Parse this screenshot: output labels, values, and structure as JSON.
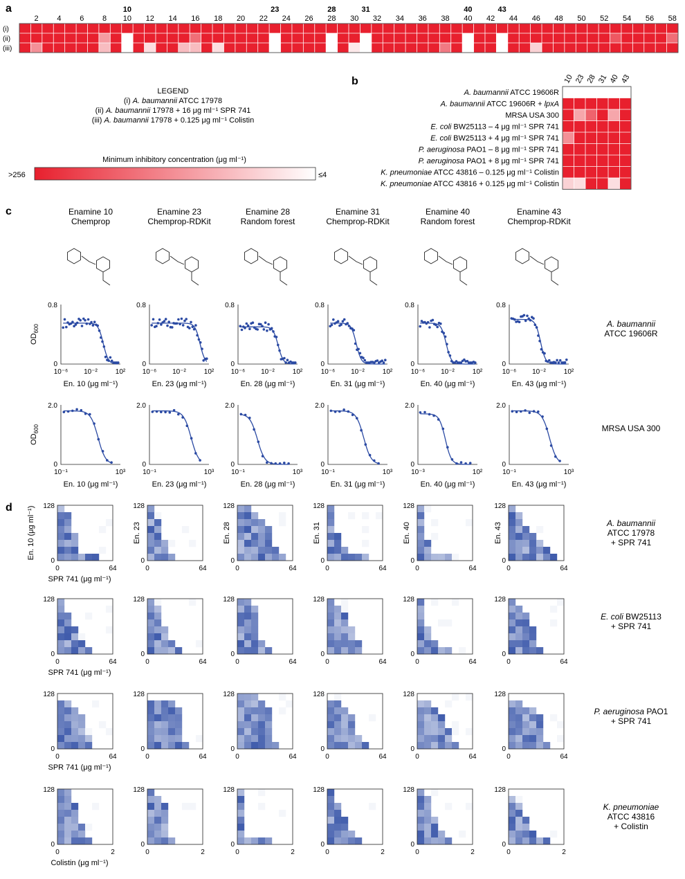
{
  "colors": {
    "red": "#e8202e",
    "blue": "#2b4aa3",
    "lightblue": "#c5cfe8",
    "white": "#ffffff"
  },
  "panel_letters": [
    "a",
    "b",
    "c",
    "d"
  ],
  "panel_a": {
    "row_labels": [
      "(i)",
      "(ii)",
      "(iii)"
    ],
    "column_numbers": [
      "2",
      "4",
      "6",
      "8",
      "10",
      "12",
      "14",
      "16",
      "18",
      "20",
      "22",
      "24",
      "26",
      "28",
      "30",
      "32",
      "34",
      "36",
      "38",
      "40",
      "42",
      "44",
      "46",
      "48",
      "50",
      "52",
      "54",
      "56",
      "58"
    ],
    "highlighted_labels": [
      "10",
      "23",
      "28",
      "31",
      "40",
      "43"
    ],
    "legend": {
      "title": "LEGEND",
      "line1_prefix": "(i) ",
      "line1_italic": "A. baumannii",
      "line1_rest": " ATCC 17978",
      "line2_prefix": "(ii) ",
      "line2_italic": "A. baumannii",
      "line2_rest": " 17978 + 16 μg ml⁻¹ SPR 741",
      "line3_prefix": "(iii) ",
      "line3_italic": "A. baumannii",
      "line3_rest": " 17978 + 0.125 μg ml⁻¹ Colistin"
    },
    "colorbar": {
      "title": "Minimum inhibitory concentration (μg ml⁻¹)",
      "left": ">256",
      "right": "≤4"
    }
  },
  "panel_b": {
    "columns": [
      "10",
      "23",
      "28",
      "31",
      "40",
      "43"
    ],
    "rows": [
      {
        "italic": "A. baumannii",
        "rest": " ATCC 19606R"
      },
      {
        "italic": "A. baumannii",
        "rest": " ATCC 19606R + ",
        "italic2": "lpxA"
      },
      {
        "italic": "",
        "rest": "MRSA USA 300"
      },
      {
        "italic": "E. coli",
        "rest": " BW25113 – 4 μg ml⁻¹ SPR 741"
      },
      {
        "italic": "E. coli",
        "rest": " BW25113 + 4 μg ml⁻¹ SPR 741"
      },
      {
        "italic": "P. aeruginosa",
        "rest": " PAO1 – 8 μg ml⁻¹ SPR 741"
      },
      {
        "italic": "P. aeruginosa",
        "rest": " PAO1 + 8 μg ml⁻¹ SPR 741"
      },
      {
        "italic": "K. pneumoniae",
        "rest": " ATCC 43816 – 0.125 μg ml⁻¹ Colistin"
      },
      {
        "italic": "K. pneumoniae",
        "rest": " ATCC 43816 + 0.125 μg ml⁻¹ Colistin"
      }
    ]
  },
  "panel_c": {
    "compounds": [
      {
        "title": "Enamine 10",
        "model": "Chemprop",
        "xlabel": "En. 10 (μg ml⁻¹)"
      },
      {
        "title": "Enamine 23",
        "model": "Chemprop-RDKit",
        "xlabel": "En. 23 (μg ml⁻¹)"
      },
      {
        "title": "Enamine 28",
        "model": "Random forest",
        "xlabel": "En. 28 (μg ml⁻¹)"
      },
      {
        "title": "Enamine 31",
        "model": "Chemprop-RDKit",
        "xlabel": "En. 31 (μg ml⁻¹)"
      },
      {
        "title": "Enamine 40",
        "model": "Random forest",
        "xlabel": "En. 40 (μg ml⁻¹)"
      },
      {
        "title": "Enamine 43",
        "model": "Chemprop-RDKit",
        "xlabel": "En. 43 (μg ml⁻¹)"
      }
    ],
    "ylabel": "OD600",
    "row1_label": {
      "italic": "A. baumannii",
      "rest": "ATCC 19606R"
    },
    "row2_label": "MRSA USA 300"
  },
  "panel_d": {
    "ylabels": [
      "En. 10 (μg ml⁻¹)",
      "En. 23",
      "En. 28",
      "En. 31",
      "En. 40",
      "En. 43"
    ],
    "rows": [
      {
        "xlabel": "SPR 741 (μg ml⁻¹)",
        "xmax": "64",
        "italic": "A. baumannii",
        "line2": "ATCC 17978",
        "line3": "+ SPR 741"
      },
      {
        "xlabel": "SPR 741 (μg ml⁻¹)",
        "xmax": "64",
        "italic": "E. coli",
        "rest": " BW25113",
        "line2": "+ SPR 741"
      },
      {
        "xlabel": "SPR 741 (μg ml⁻¹)",
        "xmax": "64",
        "italic": "P. aeruginosa",
        "rest": " PAO1",
        "line2": "+ SPR 741"
      },
      {
        "xlabel": "Colistin (μg ml⁻¹)",
        "xmax": "2",
        "italic": "K. pneumoniae",
        "line2": "ATCC 43816",
        "line3": "+ Colistin"
      }
    ],
    "ymin": "0",
    "ymax": "128",
    "xmin": "0"
  },
  "chart_data": [
    {
      "type": "heatmap",
      "panel": "a",
      "rows": [
        "(i)",
        "(ii)",
        "(iii)"
      ],
      "columns": 58,
      "value_scale": "MIC intensity 0 (≤4, white) to 1 (>256, red)",
      "values": [
        [
          1,
          1,
          1,
          1,
          1,
          1,
          1,
          1,
          1,
          1,
          1,
          1,
          1,
          1,
          1,
          1,
          1,
          1,
          1,
          1,
          1,
          1,
          1,
          1,
          1,
          1,
          1,
          1,
          1,
          1,
          1,
          1,
          1,
          1,
          1,
          1,
          1,
          1,
          1,
          1,
          1,
          1,
          1,
          1,
          1,
          1,
          1,
          1,
          1,
          1,
          1,
          1,
          1,
          1,
          1,
          1,
          1,
          1
        ],
        [
          1,
          1,
          1,
          1,
          1,
          1,
          1,
          0.45,
          1,
          0,
          1,
          1,
          1,
          1,
          1,
          0.65,
          1,
          1,
          1,
          1,
          1,
          1,
          0,
          1,
          1,
          1,
          1,
          0,
          1,
          1,
          0,
          1,
          1,
          1,
          1,
          1,
          1,
          1,
          1,
          0,
          1,
          1,
          0,
          1,
          1,
          1,
          1,
          1,
          1,
          1,
          1,
          1,
          0.75,
          1,
          1,
          1,
          1,
          0.65
        ],
        [
          1,
          0.5,
          1,
          1,
          1,
          1,
          1,
          0.3,
          1,
          0,
          1,
          0.15,
          1,
          1,
          0.3,
          0.3,
          1,
          0.15,
          1,
          1,
          1,
          1,
          0,
          1,
          1,
          1,
          1,
          0,
          1,
          0.1,
          0,
          1,
          1,
          1,
          1,
          1,
          1,
          0.6,
          1,
          0,
          1,
          1,
          0,
          1,
          1,
          0.2,
          1,
          1,
          1,
          1,
          1,
          1,
          1,
          1,
          1,
          1,
          1,
          1
        ]
      ]
    },
    {
      "type": "heatmap",
      "panel": "b",
      "columns": [
        "10",
        "23",
        "28",
        "31",
        "40",
        "43"
      ],
      "values": [
        [
          0,
          0,
          0,
          0,
          0,
          0
        ],
        [
          1,
          1,
          1,
          1,
          1,
          1
        ],
        [
          1,
          0.4,
          0.7,
          1,
          0.4,
          1
        ],
        [
          1,
          1,
          1,
          1,
          1,
          1
        ],
        [
          0.5,
          1,
          1,
          1,
          1,
          1
        ],
        [
          1,
          1,
          1,
          1,
          1,
          1
        ],
        [
          1,
          1,
          1,
          1,
          1,
          1
        ],
        [
          1,
          1,
          1,
          1,
          1,
          1
        ],
        [
          0.2,
          0.15,
          1,
          1,
          0.15,
          1
        ]
      ]
    },
    {
      "type": "scatter",
      "panel": "c-row1",
      "xscale": "log",
      "xlim": [
        1e-06,
        100
      ],
      "ylim": [
        0,
        0.8
      ],
      "yticks": [
        0,
        0.8
      ],
      "xticks": [
        "10⁻⁶",
        "10⁻²",
        "10²"
      ],
      "midpoints_log10": [
        -0.3,
        0.8,
        -0.6,
        -2.2,
        -2.2,
        -1.8
      ],
      "plateau": [
        0.55,
        0.55,
        0.5,
        0.55,
        0.55,
        0.6
      ]
    },
    {
      "type": "scatter",
      "panel": "c-row2",
      "xscale": "log",
      "ylim": [
        0,
        2.0
      ],
      "yticks": [
        0,
        2.0
      ],
      "xticks": [
        [
          "10⁻¹",
          "10³"
        ],
        [
          "10⁻¹",
          "10³"
        ],
        [
          "10⁻¹",
          "10³"
        ],
        [
          "10⁻¹",
          "10³"
        ],
        [
          "10⁻³",
          "10²"
        ],
        [
          "10⁻¹",
          "10³"
        ]
      ],
      "xlim_log10": [
        [
          -1,
          3
        ],
        [
          -1,
          3
        ],
        [
          -1,
          3
        ],
        [
          -1,
          3
        ],
        [
          -3,
          2
        ],
        [
          -1,
          3
        ]
      ],
      "midpoints_log10": [
        1.5,
        1.8,
        0.3,
        1.4,
        -0.7,
        1.7
      ],
      "plateau": [
        1.8,
        1.8,
        1.7,
        1.8,
        1.7,
        1.8
      ]
    },
    {
      "type": "heatmap",
      "panel": "d",
      "description": "checkerboard growth (blue) vs compound and adjuvant, 8x8 grids",
      "x_range": [
        0,
        64
      ],
      "y_range": [
        0,
        128
      ]
    }
  ]
}
